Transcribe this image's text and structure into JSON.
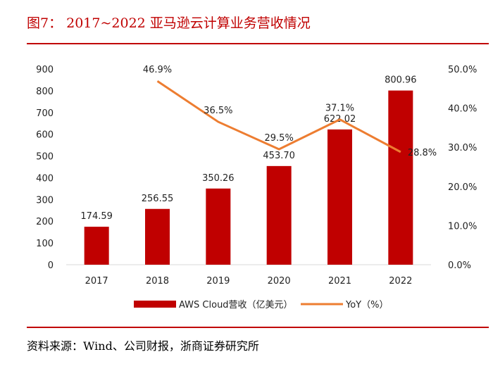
{
  "title": "图7： 2017~2022 亚马逊云计算业务营收情况",
  "source": "资料来源：Wind、公司财报，浙商证券研究所",
  "colors": {
    "bar": "#c00000",
    "line": "#ed7d31",
    "title": "#c00000",
    "axis": "#d9d9d9"
  },
  "chart_data": {
    "type": "bar",
    "title": "",
    "categories": [
      "2017",
      "2018",
      "2019",
      "2020",
      "2021",
      "2022"
    ],
    "series": [
      {
        "name": "AWS Cloud营收（亿美元）",
        "type": "bar",
        "axis": "left",
        "values": [
          174.59,
          256.55,
          350.26,
          453.7,
          622.02,
          800.96
        ],
        "labels": [
          "174.59",
          "256.55",
          "350.26",
          "453.70",
          "622.02",
          "800.96"
        ]
      },
      {
        "name": "YoY（%）",
        "type": "line",
        "axis": "right",
        "values": [
          null,
          46.9,
          36.5,
          29.5,
          37.1,
          28.8
        ],
        "labels": [
          "",
          "46.9%",
          "36.5%",
          "29.5%",
          "37.1%",
          "28.8%"
        ]
      }
    ],
    "y_left": {
      "min": 0,
      "max": 900,
      "ticks": [
        "0",
        "100",
        "200",
        "300",
        "400",
        "500",
        "600",
        "700",
        "800",
        "900"
      ]
    },
    "y_right": {
      "min": 0,
      "max": 50,
      "ticks": [
        "0.0%",
        "10.0%",
        "20.0%",
        "30.0%",
        "40.0%",
        "50.0%"
      ]
    },
    "grid": false,
    "legend": "bottom"
  }
}
